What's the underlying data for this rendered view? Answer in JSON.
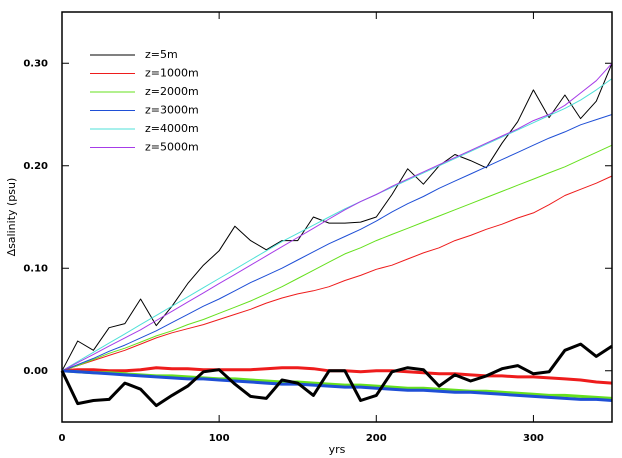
{
  "chart_data": {
    "type": "line",
    "xlabel": "yrs",
    "ylabel": "∆salinity (psu)",
    "x": [
      0,
      10,
      20,
      30,
      40,
      50,
      60,
      70,
      80,
      90,
      100,
      110,
      120,
      130,
      140,
      150,
      160,
      170,
      180,
      190,
      200,
      210,
      220,
      230,
      240,
      250,
      260,
      270,
      280,
      290,
      300,
      310,
      320,
      330,
      340,
      350
    ],
    "xlim": [
      0,
      350
    ],
    "xticks": [
      0,
      100,
      200,
      300
    ],
    "ylim": [
      -0.05,
      0.35
    ],
    "yticks": [
      {
        "value": 0,
        "label": "0.00"
      },
      {
        "value": 0.1,
        "label": "0.10"
      },
      {
        "value": 0.2,
        "label": "0.20"
      },
      {
        "value": 0.3,
        "label": "0.30"
      }
    ],
    "legend": "upper left",
    "series": [
      {
        "name": "z=5m",
        "color": "#000000",
        "linewidth": 1,
        "values": [
          0,
          0.029,
          0.02,
          0.042,
          0.046,
          0.07,
          0.044,
          0.063,
          0.085,
          0.103,
          0.117,
          0.141,
          0.127,
          0.118,
          0.127,
          0.127,
          0.15,
          0.144,
          0.144,
          0.145,
          0.15,
          0.172,
          0.197,
          0.182,
          0.2,
          0.211,
          0.205,
          0.198,
          0.222,
          0.243,
          0.274,
          0.247,
          0.269,
          0.246,
          0.263,
          0.3
        ]
      },
      {
        "name": "z=1000m",
        "color": "#ee1c1c",
        "linewidth": 1,
        "values": [
          0,
          0.005,
          0.01,
          0.015,
          0.02,
          0.026,
          0.032,
          0.037,
          0.041,
          0.045,
          0.05,
          0.055,
          0.06,
          0.066,
          0.071,
          0.075,
          0.078,
          0.082,
          0.088,
          0.093,
          0.099,
          0.103,
          0.109,
          0.115,
          0.12,
          0.127,
          0.132,
          0.138,
          0.143,
          0.149,
          0.154,
          0.162,
          0.171,
          0.177,
          0.183,
          0.19
        ]
      },
      {
        "name": "z=2000m",
        "color": "#66e01e",
        "linewidth": 1,
        "values": [
          0,
          0.005,
          0.011,
          0.017,
          0.022,
          0.028,
          0.034,
          0.039,
          0.045,
          0.05,
          0.056,
          0.062,
          0.068,
          0.075,
          0.082,
          0.09,
          0.098,
          0.106,
          0.114,
          0.12,
          0.127,
          0.133,
          0.139,
          0.145,
          0.151,
          0.157,
          0.163,
          0.169,
          0.175,
          0.181,
          0.187,
          0.193,
          0.199,
          0.206,
          0.213,
          0.22
        ]
      },
      {
        "name": "z=3000m",
        "color": "#1f4fd6",
        "linewidth": 1,
        "values": [
          0,
          0.006,
          0.012,
          0.019,
          0.025,
          0.032,
          0.039,
          0.047,
          0.055,
          0.063,
          0.07,
          0.078,
          0.086,
          0.093,
          0.1,
          0.108,
          0.116,
          0.124,
          0.131,
          0.138,
          0.146,
          0.155,
          0.163,
          0.17,
          0.178,
          0.185,
          0.192,
          0.199,
          0.206,
          0.213,
          0.22,
          0.227,
          0.233,
          0.24,
          0.245,
          0.25
        ]
      },
      {
        "name": "z=4000m",
        "color": "#4fe0d8",
        "linewidth": 1,
        "values": [
          0,
          0.009,
          0.018,
          0.027,
          0.036,
          0.045,
          0.054,
          0.063,
          0.072,
          0.081,
          0.09,
          0.099,
          0.108,
          0.117,
          0.126,
          0.134,
          0.142,
          0.15,
          0.158,
          0.165,
          0.172,
          0.179,
          0.186,
          0.193,
          0.2,
          0.207,
          0.214,
          0.221,
          0.228,
          0.235,
          0.242,
          0.249,
          0.256,
          0.264,
          0.274,
          0.285
        ]
      },
      {
        "name": "z=5000m",
        "color": "#a63ce8",
        "linewidth": 1,
        "values": [
          0,
          0.008,
          0.016,
          0.024,
          0.032,
          0.04,
          0.049,
          0.058,
          0.067,
          0.076,
          0.085,
          0.094,
          0.103,
          0.112,
          0.121,
          0.13,
          0.139,
          0.148,
          0.157,
          0.165,
          0.172,
          0.18,
          0.187,
          0.194,
          0.201,
          0.208,
          0.215,
          0.222,
          0.229,
          0.236,
          0.244,
          0.25,
          0.259,
          0.271,
          0.283,
          0.3
        ]
      },
      {
        "color": "#ee1c1c",
        "linewidth": 3,
        "values": [
          0,
          0.001,
          0.001,
          0,
          0,
          0.001,
          0.003,
          0.002,
          0.002,
          0.001,
          0.001,
          0.001,
          0.001,
          0.002,
          0.003,
          0.003,
          0.002,
          0,
          0,
          -0.001,
          0,
          0,
          -0.001,
          -0.002,
          -0.003,
          -0.003,
          -0.004,
          -0.005,
          -0.005,
          -0.006,
          -0.006,
          -0.007,
          -0.008,
          -0.009,
          -0.011,
          -0.012
        ]
      },
      {
        "color": "#66e01e",
        "linewidth": 3,
        "values": [
          0,
          -0.001,
          -0.002,
          -0.002,
          -0.003,
          -0.004,
          -0.005,
          -0.005,
          -0.006,
          -0.007,
          -0.008,
          -0.008,
          -0.009,
          -0.01,
          -0.011,
          -0.011,
          -0.012,
          -0.013,
          -0.014,
          -0.014,
          -0.015,
          -0.016,
          -0.017,
          -0.017,
          -0.018,
          -0.019,
          -0.02,
          -0.02,
          -0.021,
          -0.022,
          -0.023,
          -0.024,
          -0.024,
          -0.025,
          -0.026,
          -0.027
        ]
      },
      {
        "color": "#1f4fd6",
        "linewidth": 3,
        "values": [
          0,
          -0.001,
          -0.002,
          -0.003,
          -0.004,
          -0.005,
          -0.006,
          -0.007,
          -0.008,
          -0.008,
          -0.009,
          -0.01,
          -0.011,
          -0.012,
          -0.013,
          -0.013,
          -0.014,
          -0.015,
          -0.016,
          -0.016,
          -0.017,
          -0.018,
          -0.019,
          -0.019,
          -0.02,
          -0.021,
          -0.021,
          -0.022,
          -0.023,
          -0.024,
          -0.025,
          -0.026,
          -0.027,
          -0.028,
          -0.028,
          -0.029
        ]
      },
      {
        "color": "#000000",
        "linewidth": 3,
        "values": [
          0,
          -0.032,
          -0.029,
          -0.028,
          -0.012,
          -0.018,
          -0.034,
          -0.024,
          -0.015,
          -0.001,
          0.001,
          -0.013,
          -0.025,
          -0.027,
          -0.009,
          -0.012,
          -0.024,
          0,
          0,
          -0.029,
          -0.024,
          -0.001,
          0.003,
          0.001,
          -0.015,
          -0.004,
          -0.01,
          -0.005,
          0.002,
          0.005,
          -0.003,
          -0.001,
          0.02,
          0.026,
          0.014,
          0.024
        ]
      }
    ]
  }
}
